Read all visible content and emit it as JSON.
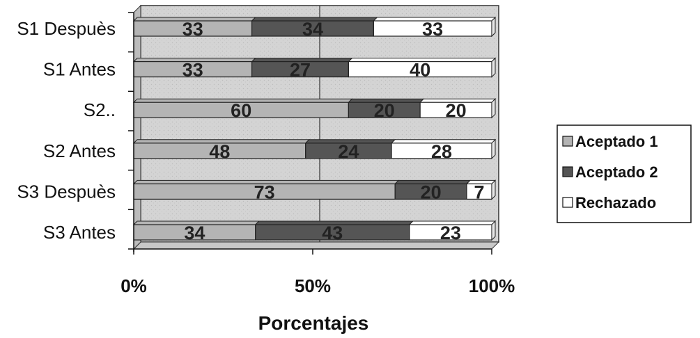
{
  "chart_data": {
    "type": "bar",
    "orientation": "horizontal",
    "stacked": "percent",
    "categories": [
      "S1 Despuès",
      "S1 Antes",
      "S2..",
      "S2 Antes",
      "S3 Despuès",
      "S3 Antes"
    ],
    "series": [
      {
        "name": "Aceptado 1",
        "values": [
          33,
          33,
          60,
          48,
          73,
          34
        ],
        "color": "#b4b4b4"
      },
      {
        "name": "Aceptado 2",
        "values": [
          34,
          27,
          20,
          24,
          20,
          43
        ],
        "color": "#555555"
      },
      {
        "name": "Rechazado",
        "values": [
          33,
          40,
          20,
          28,
          7,
          23
        ],
        "color": "#ffffff"
      }
    ],
    "x_ticks": [
      "0%",
      "50%",
      "100%"
    ],
    "xlabel": "Porcentajes",
    "ylabel": "",
    "xlim": [
      0,
      100
    ],
    "grid": true,
    "legend_position": "right"
  }
}
